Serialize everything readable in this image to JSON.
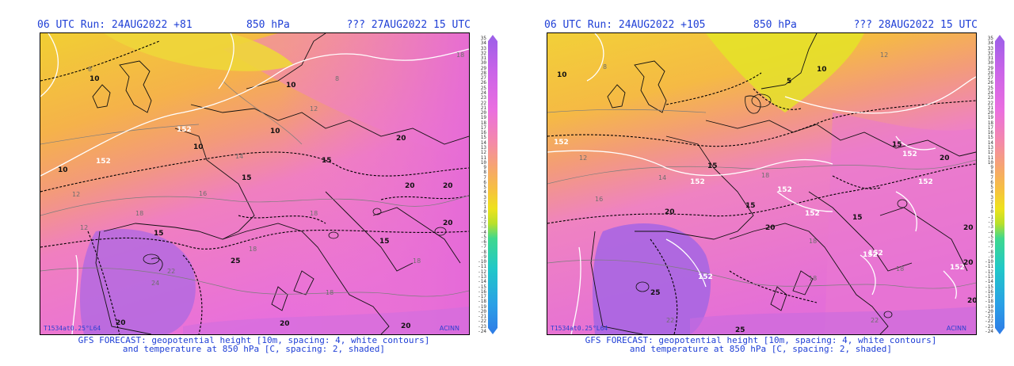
{
  "panels": [
    {
      "run_label": "06 UTC Run: 24AUG2022 +81",
      "level": "850 hPa",
      "valid_label": "??? 27AUG2022 15 UTC",
      "plot_code": "T1534at0.25°L64",
      "credit": "ACINN",
      "caption_line1": "GFS FORECAST: geopotential height [10m, spacing: 4, white contours]",
      "caption_line2": "and temperature at 850 hPa [C, spacing: 2, shaded]",
      "contour_labels": {
        "black": [
          "10",
          "10",
          "10",
          "10",
          "10",
          "15",
          "15",
          "15",
          "15",
          "20",
          "20",
          "20",
          "20",
          "20",
          "20",
          "20",
          "25"
        ],
        "gray": [
          "8",
          "8",
          "12",
          "12",
          "14",
          "16",
          "18",
          "18",
          "18",
          "18",
          "18",
          "18",
          "22",
          "24",
          "12"
        ],
        "white": [
          "152",
          "152"
        ]
      }
    },
    {
      "run_label": "06 UTC Run: 24AUG2022 +105",
      "level": "850 hPa",
      "valid_label": "??? 28AUG2022 15 UTC",
      "plot_code": "T1534at0.25°L64",
      "credit": "ACINN",
      "caption_line1": "GFS FORECAST: geopotential height [10m, spacing: 4, white contours]",
      "caption_line2": "and temperature at 850 hPa [C, spacing: 2, shaded]",
      "contour_labels": {
        "black": [
          "10",
          "10",
          "5",
          "15",
          "15",
          "15",
          "15",
          "20",
          "20",
          "20",
          "20",
          "20",
          "20",
          "25",
          "25"
        ],
        "gray": [
          "8",
          "14",
          "16",
          "18",
          "18",
          "18",
          "18",
          "22",
          "22",
          "12",
          "12"
        ],
        "white": [
          "152",
          "152",
          "152",
          "152",
          "152",
          "152",
          "152",
          "152",
          "152",
          "152"
        ]
      }
    }
  ],
  "colorbar": {
    "ticks": [
      "35",
      "34",
      "33",
      "32",
      "31",
      "30",
      "29",
      "28",
      "27",
      "26",
      "25",
      "24",
      "23",
      "22",
      "21",
      "20",
      "19",
      "18",
      "17",
      "16",
      "15",
      "14",
      "13",
      "12",
      "11",
      "10",
      "9",
      "8",
      "7",
      "6",
      "5",
      "4",
      "3",
      "2",
      "1",
      "0",
      "-1",
      "-2",
      "-3",
      "-4",
      "-5",
      "-6",
      "-7",
      "-8",
      "-9",
      "-10",
      "-11",
      "-12",
      "-13",
      "-14",
      "-15",
      "-16",
      "-17",
      "-18",
      "-19",
      "-20",
      "-21",
      "-22",
      "-23",
      "-24"
    ],
    "stops": [
      "#9a5fe8",
      "#c964e8",
      "#ea6ee0",
      "#f48aa8",
      "#f6a86a",
      "#f6c23e",
      "#eee21c",
      "#b8e02a",
      "#3fd88e",
      "#21c8c8",
      "#2aa0e6",
      "#2f7be6"
    ]
  },
  "colors": {
    "header_text": "#1f3fd6",
    "cold_shade": "#e7d53a",
    "warm_shade": "#f07fc8",
    "hot_shade": "#b06ae0",
    "coastline": "#000000",
    "geopotential_contour": "#ffffff"
  }
}
